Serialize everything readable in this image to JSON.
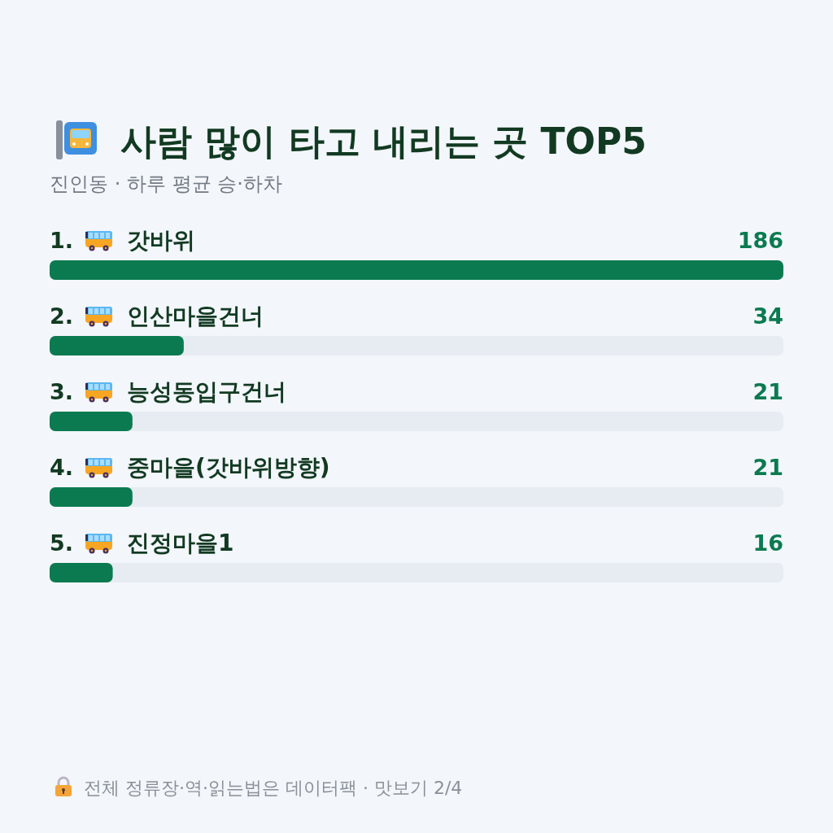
{
  "chart_data": {
    "type": "bar",
    "orientation": "horizontal",
    "title": "사람 많이 타고 내리는 곳 TOP5",
    "subtitle": "진인동 · 하루 평균 승·하차",
    "categories": [
      "1. 갓바위",
      "2. 인산마을건너",
      "3. 능성동입구건너",
      "4. 중마을(갓바위방향)",
      "5. 진정마을1"
    ],
    "values": [
      186,
      34,
      21,
      21,
      16
    ],
    "color": "#0b7a50",
    "data_labels": true,
    "annotations": [
      "전체 정류장·역·읽는법은 데이터팩 · 맛보기 2/4"
    ]
  }
}
